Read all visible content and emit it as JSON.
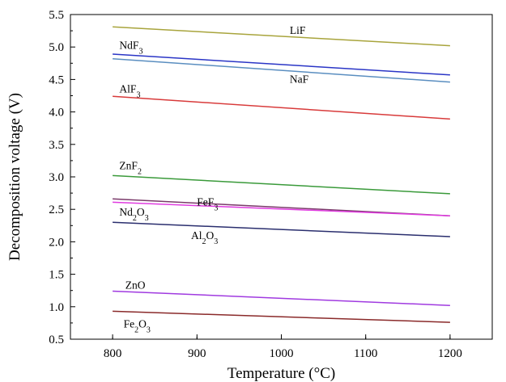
{
  "chart_data": {
    "type": "line",
    "xlabel": "Temperature (°C)",
    "ylabel": "Decomposition voltage (V)",
    "xlim": [
      750,
      1250
    ],
    "ylim": [
      0.5,
      5.5
    ],
    "xticks": [
      800,
      900,
      1000,
      1100,
      1200
    ],
    "yticks": [
      "0.5",
      "1.0",
      "1.5",
      "2.0",
      "2.5",
      "3.0",
      "3.5",
      "4.0",
      "4.5",
      "5.0",
      "5.5"
    ],
    "grid": false,
    "legend": "none",
    "series": [
      {
        "name": "LiF",
        "color": "#a8a43c",
        "x": [
          800,
          1200
        ],
        "y": [
          5.31,
          5.02
        ],
        "label": {
          "base": "LiF",
          "sub1": "",
          "mid": "",
          "sub2": "",
          "at": [
            1010,
            5.2
          ]
        }
      },
      {
        "name": "NdF3",
        "color": "#2a35c6",
        "x": [
          800,
          1200
        ],
        "y": [
          4.89,
          4.57
        ],
        "label": {
          "base": "NdF",
          "sub1": "3",
          "mid": "",
          "sub2": "",
          "at": [
            808,
            4.97
          ]
        }
      },
      {
        "name": "NaF",
        "color": "#5a8ec0",
        "x": [
          800,
          1200
        ],
        "y": [
          4.82,
          4.46
        ],
        "label": {
          "base": "NaF",
          "sub1": "",
          "mid": "",
          "sub2": "",
          "at": [
            1010,
            4.45
          ]
        }
      },
      {
        "name": "AlF3",
        "color": "#d83a3a",
        "x": [
          800,
          1200
        ],
        "y": [
          4.24,
          3.89
        ],
        "label": {
          "base": "AlF",
          "sub1": "3",
          "mid": "",
          "sub2": "",
          "at": [
            808,
            4.3
          ]
        }
      },
      {
        "name": "ZnF2",
        "color": "#3a9a3a",
        "x": [
          800,
          1200
        ],
        "y": [
          3.02,
          2.74
        ],
        "label": {
          "base": "ZnF",
          "sub1": "2",
          "mid": "",
          "sub2": "",
          "at": [
            808,
            3.12
          ]
        }
      },
      {
        "name": "FeF3",
        "color": "#7a3a6a",
        "x": [
          800,
          1200
        ],
        "y": [
          2.66,
          2.4
        ],
        "label": {
          "base": "FeF",
          "sub1": "3",
          "mid": "",
          "sub2": "",
          "at": [
            900,
            2.56
          ]
        }
      },
      {
        "name": "Nd2O3",
        "color": "#e03ae0",
        "x": [
          800,
          1200
        ],
        "y": [
          2.61,
          2.4
        ],
        "label": {
          "base": "Nd",
          "sub1": "2",
          "mid": "O",
          "sub2": "3",
          "at": [
            808,
            2.4
          ]
        }
      },
      {
        "name": "Al2O3",
        "color": "#2a2e6e",
        "x": [
          800,
          1200
        ],
        "y": [
          2.3,
          2.08
        ],
        "label": {
          "base": "Al",
          "sub1": "2",
          "mid": "O",
          "sub2": "3",
          "at": [
            893,
            2.04
          ]
        }
      },
      {
        "name": "ZnO",
        "color": "#a03ae0",
        "x": [
          800,
          1200
        ],
        "y": [
          1.24,
          1.02
        ],
        "label": {
          "base": "ZnO",
          "sub1": "",
          "mid": "",
          "sub2": "",
          "at": [
            815,
            1.28
          ]
        }
      },
      {
        "name": "Fe2O3",
        "color": "#8a2a2a",
        "x": [
          800,
          1200
        ],
        "y": [
          0.93,
          0.76
        ],
        "label": {
          "base": "Fe",
          "sub1": "2",
          "mid": "O",
          "sub2": "3",
          "at": [
            813,
            0.68
          ]
        }
      }
    ]
  }
}
